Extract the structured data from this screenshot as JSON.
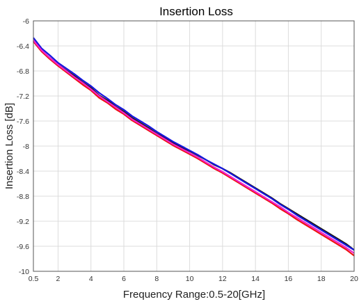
{
  "chart_data": {
    "type": "line",
    "title": "Insertion Loss",
    "xlabel": "Frequency Range:0.5-20[GHz]",
    "ylabel": "Insertion Loss [dB]",
    "xlim": [
      0.5,
      20
    ],
    "ylim": [
      -10,
      -6
    ],
    "xticks": [
      "0.5",
      "2",
      "4",
      "6",
      "8",
      "10",
      "12",
      "14",
      "16",
      "18",
      "20"
    ],
    "yticks": [
      "-6",
      "-6.4",
      "-6.8",
      "-7.2",
      "-7.6",
      "-8",
      "-8.4",
      "-8.8",
      "-9.2",
      "-9.6",
      "-10"
    ],
    "grid": true,
    "x": [
      0.5,
      1,
      1.5,
      2,
      2.5,
      3,
      3.5,
      4,
      4.5,
      5,
      5.5,
      6,
      6.5,
      7,
      7.5,
      8,
      8.5,
      9,
      9.5,
      10,
      10.5,
      11,
      11.5,
      12,
      12.5,
      13,
      13.5,
      14,
      14.5,
      15,
      15.5,
      16,
      16.5,
      17,
      17.5,
      18,
      18.5,
      19,
      19.5,
      20
    ],
    "series": [
      {
        "color": "#1a1a1a",
        "values": [
          -6.32,
          -6.48,
          -6.59,
          -6.7,
          -6.79,
          -6.88,
          -6.98,
          -7.07,
          -7.19,
          -7.27,
          -7.37,
          -7.45,
          -7.55,
          -7.63,
          -7.71,
          -7.8,
          -7.87,
          -7.95,
          -8.02,
          -8.08,
          -8.15,
          -8.22,
          -8.3,
          -8.36,
          -8.43,
          -8.51,
          -8.59,
          -8.67,
          -8.75,
          -8.83,
          -8.92,
          -9.0,
          -9.08,
          -9.16,
          -9.24,
          -9.32,
          -9.4,
          -9.48,
          -9.56,
          -9.66
        ]
      },
      {
        "color": "#1515e0",
        "values": [
          -6.27,
          -6.44,
          -6.55,
          -6.67,
          -6.76,
          -6.85,
          -6.95,
          -7.04,
          -7.15,
          -7.24,
          -7.34,
          -7.42,
          -7.52,
          -7.6,
          -7.68,
          -7.77,
          -7.85,
          -7.93,
          -8.0,
          -8.07,
          -8.14,
          -8.22,
          -8.29,
          -8.36,
          -8.44,
          -8.52,
          -8.6,
          -8.68,
          -8.76,
          -8.84,
          -8.93,
          -9.01,
          -9.1,
          -9.18,
          -9.26,
          -9.34,
          -9.42,
          -9.5,
          -9.58,
          -9.66
        ]
      },
      {
        "color": "#ee1111",
        "values": [
          -6.33,
          -6.49,
          -6.61,
          -6.72,
          -6.82,
          -6.92,
          -7.02,
          -7.11,
          -7.23,
          -7.31,
          -7.41,
          -7.49,
          -7.59,
          -7.67,
          -7.75,
          -7.83,
          -7.91,
          -7.99,
          -8.06,
          -8.13,
          -8.2,
          -8.28,
          -8.36,
          -8.43,
          -8.51,
          -8.59,
          -8.67,
          -8.75,
          -8.83,
          -8.91,
          -9.0,
          -9.08,
          -9.17,
          -9.25,
          -9.33,
          -9.41,
          -9.49,
          -9.57,
          -9.65,
          -9.75
        ]
      },
      {
        "color": "#ee22cc",
        "values": [
          -6.31,
          -6.47,
          -6.59,
          -6.7,
          -6.8,
          -6.9,
          -6.99,
          -7.09,
          -7.2,
          -7.29,
          -7.38,
          -7.47,
          -7.57,
          -7.65,
          -7.73,
          -7.81,
          -7.89,
          -7.97,
          -8.04,
          -8.11,
          -8.18,
          -8.26,
          -8.34,
          -8.41,
          -8.49,
          -8.57,
          -8.65,
          -8.73,
          -8.81,
          -8.89,
          -8.97,
          -9.06,
          -9.14,
          -9.22,
          -9.3,
          -9.38,
          -9.46,
          -9.54,
          -9.62,
          -9.71
        ]
      }
    ]
  }
}
